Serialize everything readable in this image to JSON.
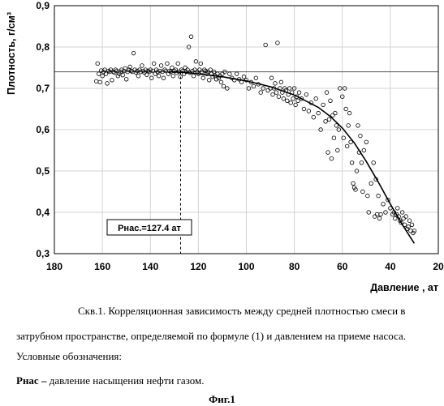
{
  "chart_data": {
    "type": "scatter",
    "title": "",
    "xlabel": "Давление , ат",
    "ylabel": "Плотность, г/см³",
    "xlim": [
      180,
      20
    ],
    "ylim": [
      0.3,
      0.9
    ],
    "x_ticks": [
      "180",
      "160",
      "140",
      "120",
      "100",
      "80",
      "60",
      "40",
      "20"
    ],
    "y_ticks": [
      "0,3",
      "0,4",
      "0,5",
      "0,6",
      "0,7",
      "0,8",
      "0,9"
    ],
    "grid": "major both axes",
    "reference_line_y": 0.74,
    "vertical_marker_x": 127.4,
    "annotation": "Рнас.=127.4 ат",
    "trend_line": {
      "x": [
        132,
        125,
        120,
        110,
        100,
        90,
        80,
        70,
        65,
        60,
        55,
        50,
        45,
        40,
        35,
        30
      ],
      "y": [
        0.74,
        0.738,
        0.735,
        0.728,
        0.718,
        0.704,
        0.684,
        0.654,
        0.632,
        0.604,
        0.568,
        0.523,
        0.473,
        0.42,
        0.37,
        0.325
      ]
    },
    "series": [
      {
        "points": [
          [
            162.5,
            0.717
          ],
          [
            162.0,
            0.76
          ],
          [
            161.5,
            0.735
          ],
          [
            161.0,
            0.715
          ],
          [
            160.5,
            0.743
          ],
          [
            160.0,
            0.73
          ],
          [
            159.5,
            0.74
          ],
          [
            159.0,
            0.745
          ],
          [
            158.5,
            0.735
          ],
          [
            158.0,
            0.712
          ],
          [
            157.5,
            0.742
          ],
          [
            157.0,
            0.74
          ],
          [
            156.5,
            0.745
          ],
          [
            156.0,
            0.72
          ],
          [
            155.5,
            0.74
          ],
          [
            155.0,
            0.738
          ],
          [
            154.5,
            0.745
          ],
          [
            154.0,
            0.742
          ],
          [
            153.5,
            0.73
          ],
          [
            153.0,
            0.735
          ],
          [
            152.5,
            0.74
          ],
          [
            152.0,
            0.745
          ],
          [
            151.5,
            0.732
          ],
          [
            151.0,
            0.742
          ],
          [
            150.5,
            0.748
          ],
          [
            150.0,
            0.722
          ],
          [
            149.5,
            0.74
          ],
          [
            149.0,
            0.745
          ],
          [
            148.5,
            0.752
          ],
          [
            148.0,
            0.742
          ],
          [
            147.5,
            0.74
          ],
          [
            147.0,
            0.785
          ],
          [
            146.5,
            0.745
          ],
          [
            146.0,
            0.738
          ],
          [
            145.5,
            0.742
          ],
          [
            145.0,
            0.73
          ],
          [
            144.5,
            0.745
          ],
          [
            144.0,
            0.74
          ],
          [
            143.5,
            0.755
          ],
          [
            143.0,
            0.742
          ],
          [
            142.5,
            0.738
          ],
          [
            142.0,
            0.745
          ],
          [
            141.5,
            0.733
          ],
          [
            141.0,
            0.742
          ],
          [
            140.5,
            0.74
          ],
          [
            140.0,
            0.745
          ],
          [
            139.5,
            0.725
          ],
          [
            139.0,
            0.742
          ],
          [
            138.5,
            0.76
          ],
          [
            138.0,
            0.735
          ],
          [
            137.5,
            0.745
          ],
          [
            137.0,
            0.74
          ],
          [
            136.5,
            0.73
          ],
          [
            136.0,
            0.742
          ],
          [
            135.5,
            0.755
          ],
          [
            135.0,
            0.74
          ],
          [
            134.5,
            0.725
          ],
          [
            134.0,
            0.745
          ],
          [
            133.5,
            0.742
          ],
          [
            133.0,
            0.76
          ],
          [
            132.5,
            0.735
          ],
          [
            132.0,
            0.742
          ],
          [
            131.5,
            0.74
          ],
          [
            131.0,
            0.75
          ],
          [
            130.5,
            0.73
          ],
          [
            130.0,
            0.742
          ],
          [
            129.5,
            0.745
          ],
          [
            129.0,
            0.738
          ],
          [
            128.5,
            0.76
          ],
          [
            128.0,
            0.74
          ],
          [
            127.5,
            0.728
          ],
          [
            127.0,
            0.745
          ],
          [
            126.5,
            0.742
          ],
          [
            126.0,
            0.735
          ],
          [
            125.5,
            0.75
          ],
          [
            125.0,
            0.74
          ],
          [
            124.5,
            0.745
          ],
          [
            124.0,
            0.8
          ],
          [
            123.5,
            0.738
          ],
          [
            123.0,
            0.825
          ],
          [
            122.5,
            0.742
          ],
          [
            122.0,
            0.73
          ],
          [
            121.5,
            0.745
          ],
          [
            121.0,
            0.765
          ],
          [
            120.5,
            0.74
          ],
          [
            120.0,
            0.735
          ],
          [
            119.5,
            0.745
          ],
          [
            119.0,
            0.76
          ],
          [
            118.5,
            0.74
          ],
          [
            118.0,
            0.725
          ],
          [
            117.5,
            0.745
          ],
          [
            117.0,
            0.742
          ],
          [
            116.5,
            0.735
          ],
          [
            116.0,
            0.74
          ],
          [
            115.5,
            0.72
          ],
          [
            115.0,
            0.745
          ],
          [
            114.5,
            0.735
          ],
          [
            114.0,
            0.728
          ],
          [
            113.5,
            0.74
          ],
          [
            113.0,
            0.73
          ],
          [
            112.5,
            0.722
          ],
          [
            112.0,
            0.735
          ],
          [
            111.5,
            0.725
          ],
          [
            111.0,
            0.73
          ],
          [
            110.5,
            0.715
          ],
          [
            110.0,
            0.735
          ],
          [
            109.5,
            0.705
          ],
          [
            109.0,
            0.74
          ],
          [
            108.0,
            0.7
          ],
          [
            107.0,
            0.735
          ],
          [
            106.0,
            0.725
          ],
          [
            105.0,
            0.72
          ],
          [
            104.0,
            0.735
          ],
          [
            103.0,
            0.722
          ],
          [
            102.0,
            0.715
          ],
          [
            101.0,
            0.728
          ],
          [
            100.0,
            0.72
          ],
          [
            99.0,
            0.7
          ],
          [
            98.0,
            0.715
          ],
          [
            97.0,
            0.705
          ],
          [
            96.0,
            0.725
          ],
          [
            95.0,
            0.71
          ],
          [
            94.0,
            0.69
          ],
          [
            93.0,
            0.7
          ],
          [
            92.0,
            0.805
          ],
          [
            91.0,
            0.695
          ],
          [
            90.0,
            0.7
          ],
          [
            89.5,
            0.725
          ],
          [
            89.0,
            0.685
          ],
          [
            88.5,
            0.7
          ],
          [
            88.0,
            0.712
          ],
          [
            87.5,
            0.69
          ],
          [
            87.0,
            0.81
          ],
          [
            86.5,
            0.68
          ],
          [
            86.0,
            0.7
          ],
          [
            85.5,
            0.715
          ],
          [
            85.0,
            0.69
          ],
          [
            84.5,
            0.675
          ],
          [
            84.0,
            0.7
          ],
          [
            83.5,
            0.695
          ],
          [
            83.0,
            0.67
          ],
          [
            82.5,
            0.685
          ],
          [
            82.0,
            0.7
          ],
          [
            81.5,
            0.665
          ],
          [
            81.0,
            0.69
          ],
          [
            80.5,
            0.675
          ],
          [
            80.0,
            0.7
          ],
          [
            79.5,
            0.66
          ],
          [
            79.0,
            0.68
          ],
          [
            78.5,
            0.67
          ],
          [
            78.0,
            0.69
          ],
          [
            77.0,
            0.675
          ],
          [
            76.0,
            0.65
          ],
          [
            75.0,
            0.685
          ],
          [
            74.0,
            0.645
          ],
          [
            73.0,
            0.665
          ],
          [
            72.0,
            0.63
          ],
          [
            71.0,
            0.675
          ],
          [
            70.0,
            0.64
          ],
          [
            69.0,
            0.6
          ],
          [
            68.0,
            0.66
          ],
          [
            67.0,
            0.62
          ],
          [
            66.5,
            0.69
          ],
          [
            66.0,
            0.545
          ],
          [
            65.5,
            0.625
          ],
          [
            65.0,
            0.67
          ],
          [
            64.5,
            0.53
          ],
          [
            64.0,
            0.635
          ],
          [
            63.5,
            0.58
          ],
          [
            63.0,
            0.64
          ],
          [
            62.5,
            0.61
          ],
          [
            62.0,
            0.55
          ],
          [
            61.5,
            0.6
          ],
          [
            61.0,
            0.7
          ],
          [
            60.0,
            0.68
          ],
          [
            59.5,
            0.58
          ],
          [
            59.0,
            0.7
          ],
          [
            58.5,
            0.65
          ],
          [
            58.0,
            0.56
          ],
          [
            57.5,
            0.61
          ],
          [
            57.0,
            0.64
          ],
          [
            56.5,
            0.57
          ],
          [
            56.0,
            0.52
          ],
          [
            55.5,
            0.47
          ],
          [
            55.0,
            0.46
          ],
          [
            54.5,
            0.455
          ],
          [
            54.0,
            0.5
          ],
          [
            53.5,
            0.61
          ],
          [
            53.0,
            0.545
          ],
          [
            52.5,
            0.585
          ],
          [
            52.0,
            0.52
          ],
          [
            51.5,
            0.45
          ],
          [
            51.0,
            0.55
          ],
          [
            50.0,
            0.57
          ],
          [
            49.5,
            0.44
          ],
          [
            49.0,
            0.4
          ],
          [
            48.0,
            0.47
          ],
          [
            47.0,
            0.52
          ],
          [
            46.5,
            0.39
          ],
          [
            46.0,
            0.48
          ],
          [
            45.5,
            0.395
          ],
          [
            45.0,
            0.44
          ],
          [
            44.5,
            0.385
          ],
          [
            44.0,
            0.395
          ],
          [
            43.0,
            0.42
          ],
          [
            42.0,
            0.4
          ],
          [
            41.0,
            0.43
          ],
          [
            40.0,
            0.41
          ],
          [
            39.0,
            0.395
          ],
          [
            38.5,
            0.4
          ],
          [
            38.0,
            0.385
          ],
          [
            37.5,
            0.395
          ],
          [
            37.0,
            0.41
          ],
          [
            36.5,
            0.39
          ],
          [
            36.0,
            0.38
          ],
          [
            35.5,
            0.375
          ],
          [
            35.0,
            0.4
          ],
          [
            34.5,
            0.385
          ],
          [
            34.0,
            0.37
          ],
          [
            33.5,
            0.39
          ],
          [
            33.0,
            0.36
          ],
          [
            32.5,
            0.365
          ],
          [
            32.0,
            0.38
          ],
          [
            31.5,
            0.355
          ],
          [
            31.0,
            0.37
          ],
          [
            30.5,
            0.35
          ],
          [
            30.0,
            0.355
          ]
        ]
      }
    ]
  },
  "caption": {
    "line1": "Скв.1. Корреляционная зависимость  между средней плотностью смеси в",
    "line2": "затрубном пространстве, определяемой по формуле (1) и давлением на приеме насоса.",
    "line3": "Условные обозначения:",
    "legend_term": "Рнас –",
    "legend_text": " давление насыщения нефти газом.",
    "figure_label": "Фиг.1"
  }
}
